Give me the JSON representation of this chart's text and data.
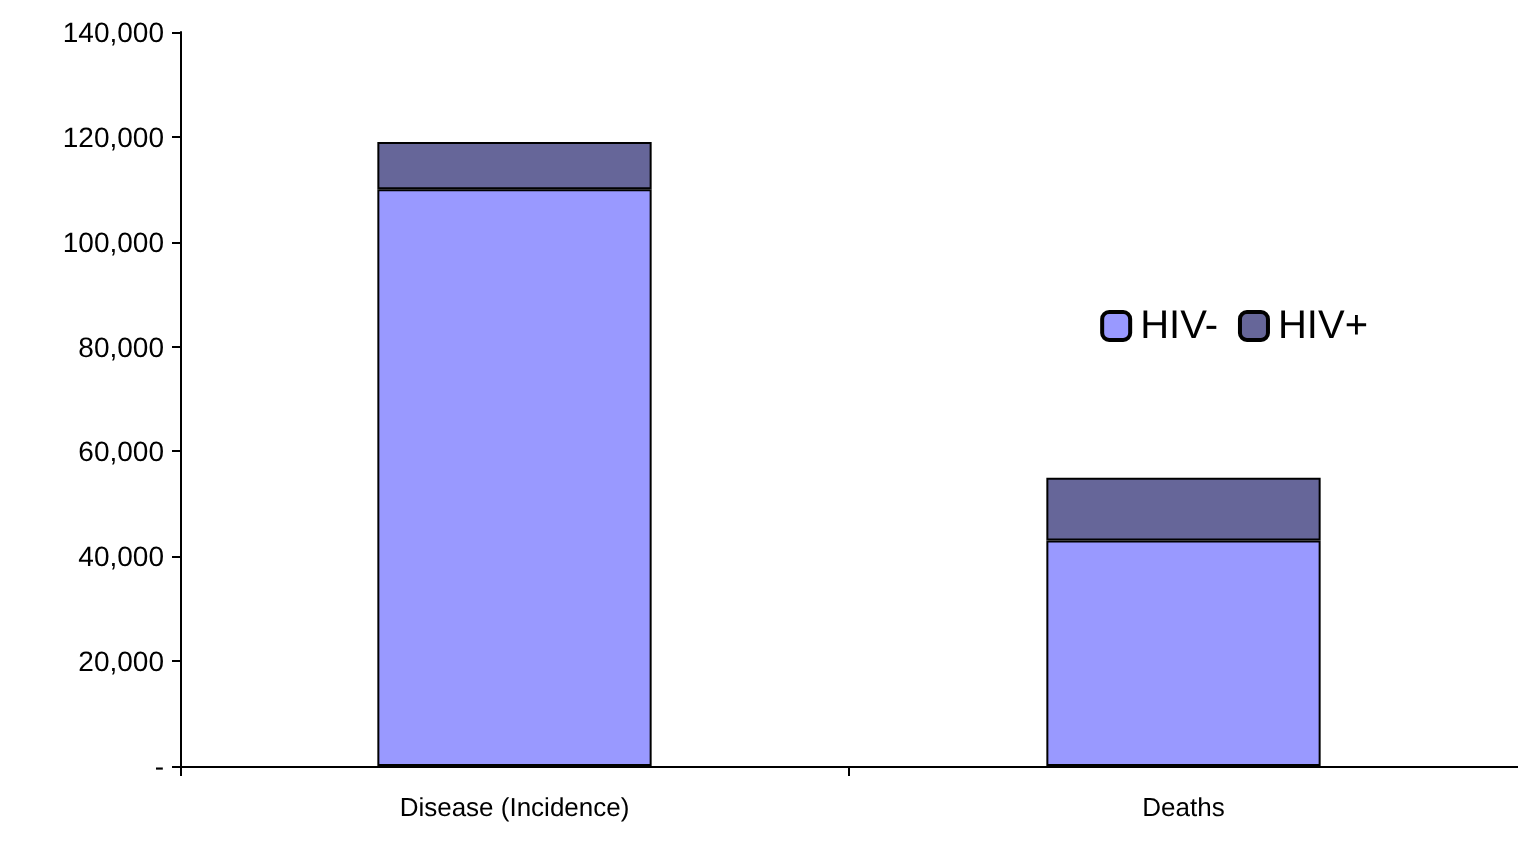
{
  "chart_data": {
    "type": "bar",
    "stacked": true,
    "categories": [
      "Disease (Incidence)",
      "Deaths"
    ],
    "series": [
      {
        "name": "HIV-",
        "color": "#9999ff",
        "values": [
          110000,
          43000
        ]
      },
      {
        "name": "HIV+",
        "color": "#666699",
        "values": [
          9000,
          12000
        ]
      }
    ],
    "ylim": [
      0,
      140000
    ],
    "yticks": [
      {
        "value": 0,
        "label": "-"
      },
      {
        "value": 20000,
        "label": "20,000"
      },
      {
        "value": 40000,
        "label": "40,000"
      },
      {
        "value": 60000,
        "label": "60,000"
      },
      {
        "value": 80000,
        "label": "80,000"
      },
      {
        "value": 100000,
        "label": "100,000"
      },
      {
        "value": 120000,
        "label": "120,000"
      },
      {
        "value": 140000,
        "label": "140,000"
      }
    ],
    "grid": false,
    "legend": "right"
  }
}
